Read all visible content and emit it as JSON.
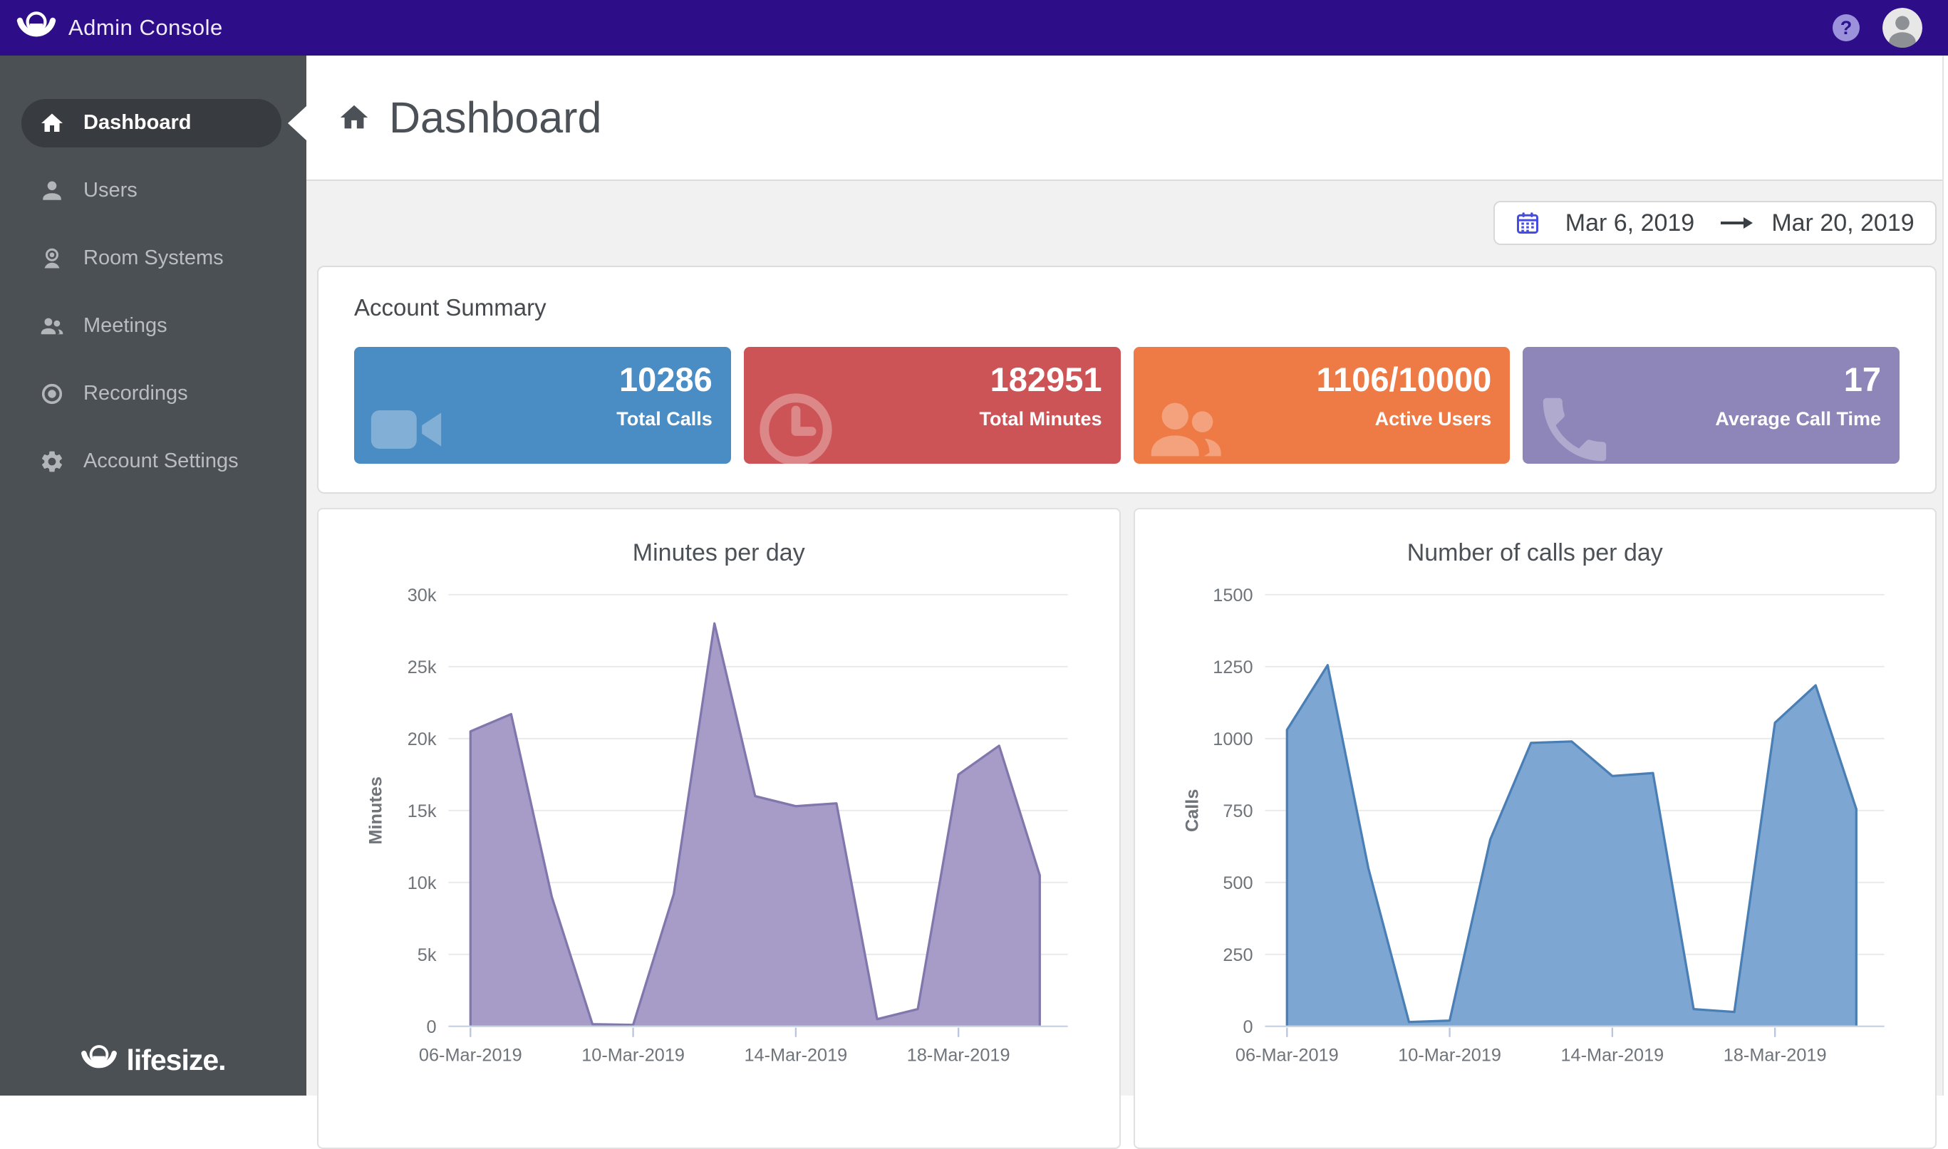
{
  "topbar": {
    "app_title": "Admin Console",
    "help_glyph": "?"
  },
  "sidebar": {
    "items": [
      {
        "label": "Dashboard",
        "icon": "home",
        "active": true
      },
      {
        "label": "Users",
        "icon": "user",
        "active": false
      },
      {
        "label": "Room Systems",
        "icon": "room-camera",
        "active": false
      },
      {
        "label": "Meetings",
        "icon": "people",
        "active": false
      },
      {
        "label": "Recordings",
        "icon": "record",
        "active": false
      },
      {
        "label": "Account Settings",
        "icon": "gear",
        "active": false
      }
    ],
    "logo_text": "lifesize."
  },
  "header": {
    "title": "Dashboard"
  },
  "date_range": {
    "start": "Mar 6, 2019",
    "end": "Mar 20, 2019"
  },
  "account_summary": {
    "title": "Account Summary",
    "cards": [
      {
        "value": "10286",
        "label": "Total Calls",
        "color": "#4a8cc4",
        "icon": "video-camera"
      },
      {
        "value": "182951",
        "label": "Total Minutes",
        "color": "#cd5456",
        "icon": "clock"
      },
      {
        "value": "1106/10000",
        "label": "Active Users",
        "color": "#ee7a45",
        "icon": "people"
      },
      {
        "value": "17",
        "label": "Average Call Time",
        "color": "#8e85b9",
        "icon": "phone"
      }
    ]
  },
  "chart_data": [
    {
      "type": "area",
      "title": "Minutes per day",
      "xlabel": "",
      "ylabel": "Minutes",
      "x": [
        "06-Mar-2019",
        "07-Mar-2019",
        "08-Mar-2019",
        "09-Mar-2019",
        "10-Mar-2019",
        "11-Mar-2019",
        "12-Mar-2019",
        "13-Mar-2019",
        "14-Mar-2019",
        "15-Mar-2019",
        "16-Mar-2019",
        "17-Mar-2019",
        "18-Mar-2019",
        "19-Mar-2019",
        "20-Mar-2019"
      ],
      "values": [
        20500,
        21700,
        9000,
        150,
        100,
        9200,
        28000,
        16000,
        15300,
        15500,
        500,
        1200,
        17500,
        19500,
        10500
      ],
      "ylim": [
        0,
        30000
      ],
      "ytick_values": [
        0,
        5000,
        10000,
        15000,
        20000,
        25000,
        30000
      ],
      "ytick_labels": [
        "0",
        "5k",
        "10k",
        "15k",
        "20k",
        "25k",
        "30k"
      ],
      "xtick_indices": [
        0,
        4,
        8,
        12
      ],
      "xtick_labels": [
        "06-Mar-2019",
        "10-Mar-2019",
        "14-Mar-2019",
        "18-Mar-2019"
      ],
      "grid": true,
      "legend": false,
      "fill_color": "#a79cc7",
      "stroke_color": "#8177ad"
    },
    {
      "type": "area",
      "title": "Number of calls per day",
      "xlabel": "",
      "ylabel": "Calls",
      "x": [
        "06-Mar-2019",
        "07-Mar-2019",
        "08-Mar-2019",
        "09-Mar-2019",
        "10-Mar-2019",
        "11-Mar-2019",
        "12-Mar-2019",
        "13-Mar-2019",
        "14-Mar-2019",
        "15-Mar-2019",
        "16-Mar-2019",
        "17-Mar-2019",
        "18-Mar-2019",
        "19-Mar-2019",
        "20-Mar-2019"
      ],
      "values": [
        1030,
        1255,
        550,
        15,
        20,
        650,
        985,
        990,
        870,
        880,
        60,
        50,
        1055,
        1185,
        755
      ],
      "ylim": [
        0,
        1500
      ],
      "ytick_values": [
        0,
        250,
        500,
        750,
        1000,
        1250,
        1500
      ],
      "ytick_labels": [
        "0",
        "250",
        "500",
        "750",
        "1000",
        "1250",
        "1500"
      ],
      "xtick_indices": [
        0,
        4,
        8,
        12
      ],
      "xtick_labels": [
        "06-Mar-2019",
        "10-Mar-2019",
        "14-Mar-2019",
        "18-Mar-2019"
      ],
      "grid": true,
      "legend": false,
      "fill_color": "#7ea6d2",
      "stroke_color": "#4a7fb5"
    }
  ],
  "chart_style": {
    "grid_color": "#e9e9e9",
    "axis_color": "#cbd5e9",
    "tick_color": "#b9c6de",
    "text_color": "#6e7479"
  }
}
